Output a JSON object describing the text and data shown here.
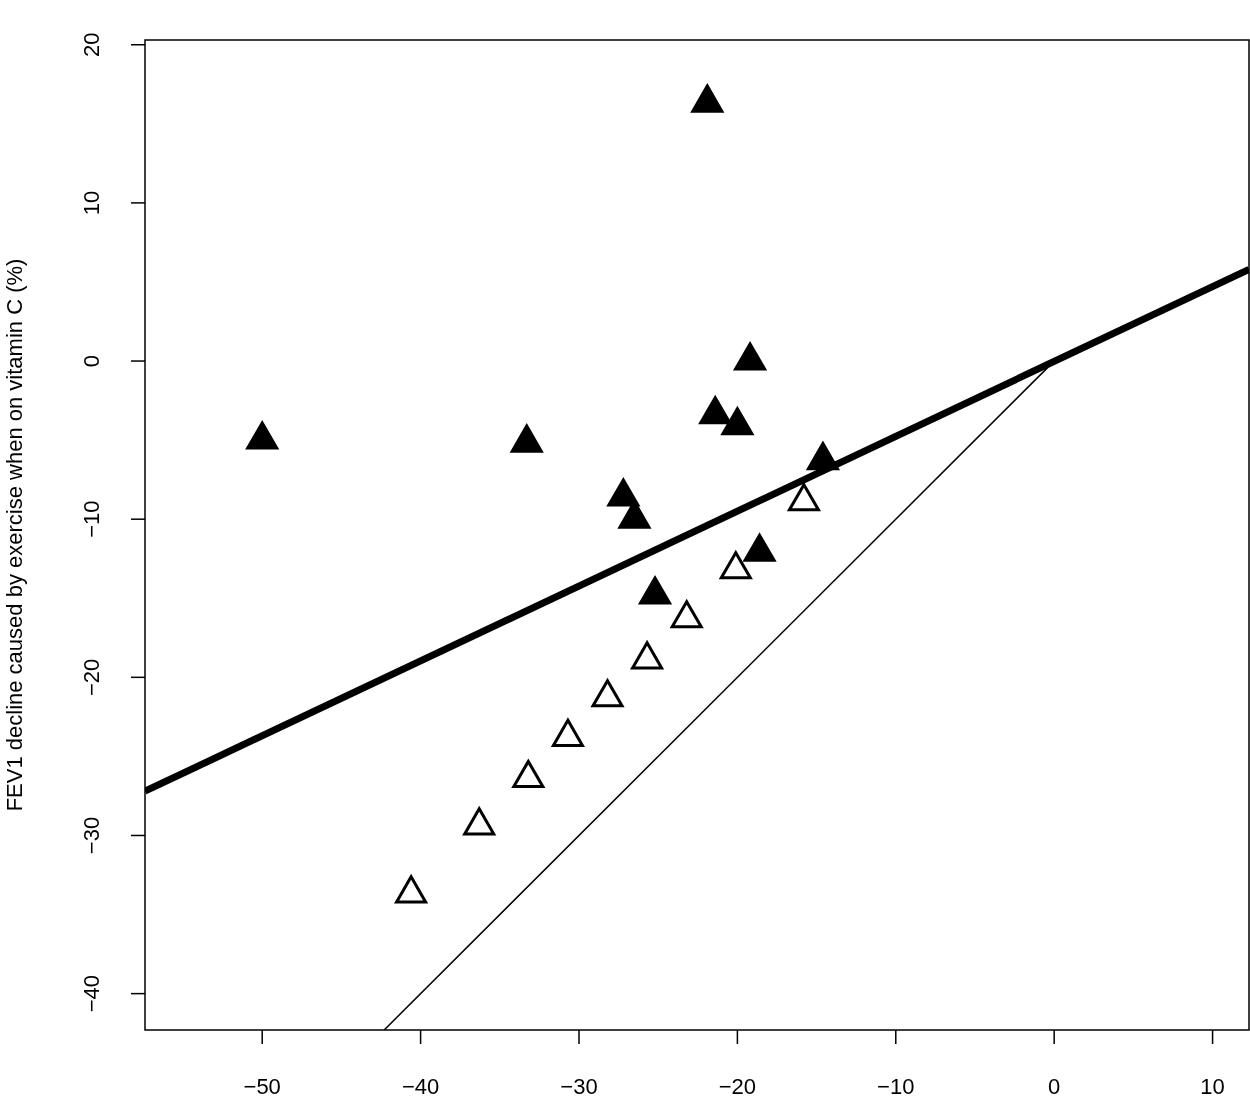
{
  "chart_data": {
    "type": "scatter",
    "ylabel": "FEV1 decline caused by exercise when on vitamin C (%)",
    "xlim": [
      -57.4,
      12.3
    ],
    "ylim": [
      -42.3,
      20.3
    ],
    "xticks": [
      -50,
      -40,
      -30,
      -20,
      -10,
      0,
      10
    ],
    "yticks": [
      -40,
      -30,
      -20,
      -10,
      0,
      10,
      20
    ],
    "grid": false,
    "series": [
      {
        "color": "#000000",
        "marker": "triangle",
        "x": [
          -50,
          -33.3,
          -21.9,
          -19.2,
          -21.4,
          -20.0,
          -14.6,
          -27.2,
          -26.5,
          -18.6,
          -25.2
        ],
        "values": [
          -4.9,
          -5.1,
          16.4,
          0.1,
          -3.3,
          -4.0,
          -6.2,
          -8.5,
          -9.9,
          -12.0,
          -14.7
        ]
      },
      {
        "color": "#ffffff",
        "marker": "triangle",
        "x": [
          -15.8,
          -20.1,
          -23.2,
          -25.7,
          -28.2,
          -30.7,
          -33.2,
          -36.3,
          -40.6
        ],
        "values": [
          -8.8,
          -13.1,
          -16.2,
          -18.8,
          -21.2,
          -23.7,
          -26.3,
          -29.3,
          -33.6
        ]
      },
      {
        "type": "line",
        "color": "#000000",
        "x": [
          -57.4,
          12.3
        ],
        "values": [
          -27.2,
          5.8
        ]
      },
      {
        "type": "line",
        "color": "#000000",
        "x": [
          -42.3,
          -0.4
        ],
        "values": [
          -42.3,
          -0.4
        ]
      }
    ]
  }
}
